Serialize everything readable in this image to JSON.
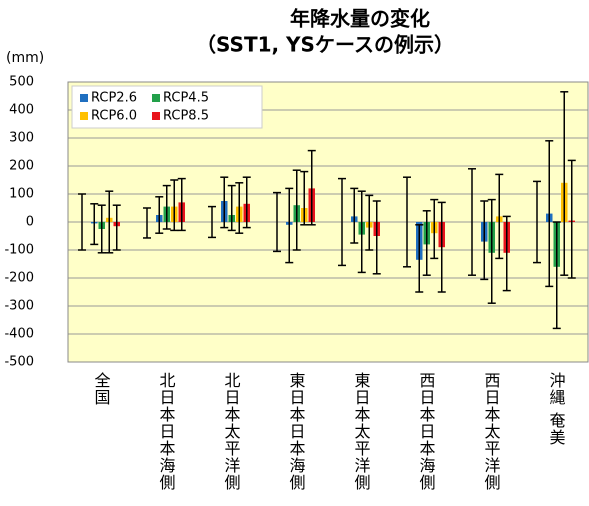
{
  "chart_data": {
    "type": "bar",
    "title": "年降水量の変化",
    "subtitle": "（SST1, YSケースの例示）",
    "y_label": "(mm)",
    "categories": [
      "全国",
      "北日本日本海側",
      "北日本太平洋側",
      "東日本日本海側",
      "東日本太平洋側",
      "西日本日本海側",
      "西日本太平洋側",
      "沖縄 奄美"
    ],
    "reference_range": {
      "color": "#000000",
      "low": [
        -100,
        -57,
        -55,
        -105,
        -155,
        -160,
        -190,
        -145
      ],
      "high": [
        100,
        50,
        55,
        105,
        155,
        160,
        190,
        145
      ]
    },
    "series": [
      {
        "name": "RCP2.6",
        "color": "#1f6fc0",
        "values": [
          -5,
          25,
          75,
          -10,
          20,
          -135,
          -70,
          30
        ],
        "error_low": [
          -80,
          -40,
          -20,
          -145,
          -75,
          -250,
          -205,
          -230
        ],
        "error_high": [
          65,
          90,
          160,
          120,
          120,
          -10,
          75,
          290
        ]
      },
      {
        "name": "RCP4.5",
        "color": "#22a04a",
        "values": [
          -25,
          55,
          25,
          60,
          -45,
          -80,
          -110,
          -160
        ],
        "error_low": [
          -110,
          -25,
          -30,
          -100,
          -180,
          -190,
          -290,
          -380
        ],
        "error_high": [
          60,
          130,
          130,
          185,
          110,
          40,
          80,
          0
        ]
      },
      {
        "name": "RCP6.0",
        "color": "#ffc000",
        "values": [
          15,
          55,
          55,
          50,
          -20,
          -40,
          20,
          140
        ],
        "error_low": [
          -110,
          -30,
          -40,
          -10,
          -100,
          -130,
          -130,
          -190
        ],
        "error_high": [
          110,
          150,
          140,
          180,
          95,
          80,
          170,
          465
        ]
      },
      {
        "name": "RCP8.5",
        "color": "#e8141c",
        "values": [
          -15,
          70,
          65,
          120,
          -50,
          -90,
          -110,
          5
        ],
        "error_low": [
          -100,
          -30,
          -20,
          -10,
          -185,
          -250,
          -245,
          -200
        ],
        "error_high": [
          60,
          155,
          160,
          255,
          75,
          70,
          20,
          220
        ]
      }
    ],
    "ylim": [
      -500,
      500
    ],
    "yticks": [
      -500,
      -400,
      -300,
      -200,
      -100,
      0,
      100,
      200,
      300,
      400,
      500
    ],
    "grid": true,
    "legend": "upper left",
    "background": "#ffffc8"
  }
}
